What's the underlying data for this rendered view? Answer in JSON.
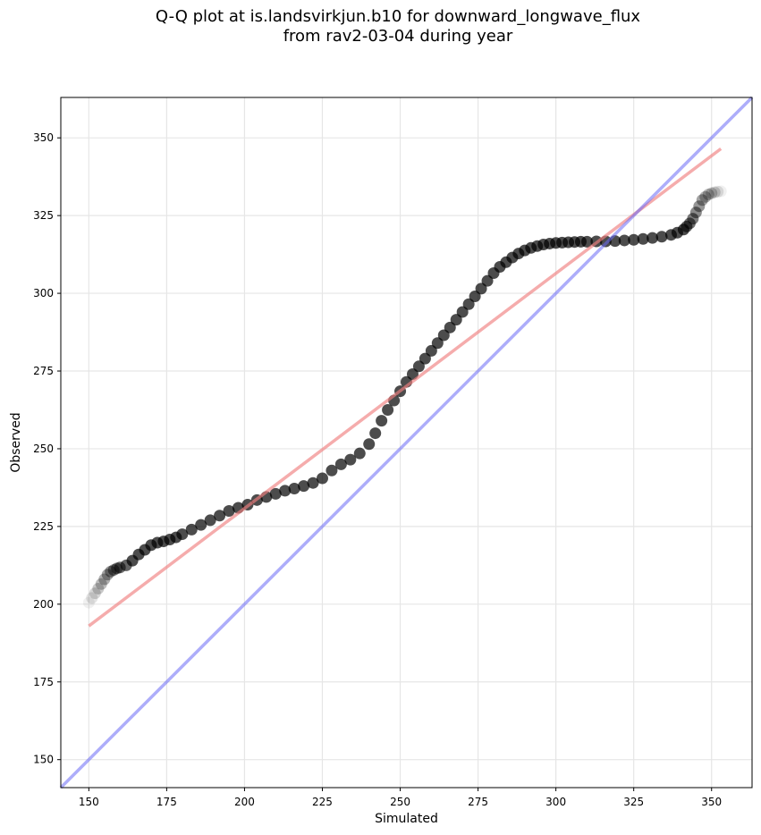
{
  "chart_data": {
    "type": "scatter",
    "title_line1": "Q-Q plot at is.landsvirkjun.b10 for downward_longwave_flux",
    "title_line2": "from rav2-03-04 during year",
    "xlabel": "Simulated",
    "ylabel": "Observed",
    "xlim": [
      141,
      363
    ],
    "ylim": [
      141,
      363
    ],
    "xticks": [
      150,
      175,
      200,
      225,
      250,
      275,
      300,
      325,
      350
    ],
    "yticks": [
      150,
      175,
      200,
      225,
      250,
      275,
      300,
      325,
      350
    ],
    "grid": true,
    "colors": {
      "points": "#000000",
      "fit_line": "#f08080",
      "one_to_one": "#6a6af5"
    },
    "fit_line": {
      "x": [
        150,
        353
      ],
      "y": [
        193,
        346.5
      ]
    },
    "one_to_one_line": {
      "x": [
        141,
        363
      ],
      "y": [
        141,
        363
      ]
    },
    "quantiles": {
      "x": [
        150,
        151,
        152,
        153,
        154,
        155,
        156,
        157,
        158,
        159,
        160,
        162,
        164,
        166,
        168,
        170,
        172,
        174,
        176,
        178,
        180,
        183,
        186,
        189,
        192,
        195,
        198,
        201,
        204,
        207,
        210,
        213,
        216,
        219,
        222,
        225,
        228,
        231,
        234,
        237,
        240,
        242,
        244,
        246,
        248,
        250,
        252,
        254,
        256,
        258,
        260,
        262,
        264,
        266,
        268,
        270,
        272,
        274,
        276,
        278,
        280,
        282,
        284,
        286,
        288,
        290,
        292,
        294,
        296,
        298,
        300,
        302,
        304,
        306,
        308,
        310,
        313,
        316,
        319,
        322,
        325,
        328,
        331,
        334,
        337,
        339,
        341,
        342,
        343,
        344,
        345,
        346,
        347,
        348,
        349,
        350,
        351,
        352,
        353
      ],
      "y": [
        200.5,
        202,
        203.5,
        205,
        206.5,
        208,
        209.5,
        210.5,
        211,
        211.5,
        211.8,
        212.5,
        214,
        216,
        217.5,
        219,
        219.8,
        220.2,
        220.8,
        221.5,
        222.5,
        224,
        225.5,
        227,
        228.5,
        230,
        231,
        232,
        233.5,
        234.5,
        235.5,
        236.5,
        237.2,
        238,
        239,
        240.5,
        243,
        245,
        246.5,
        248.5,
        251.5,
        255,
        259,
        262.5,
        265.5,
        268.5,
        271.5,
        274,
        276.5,
        279,
        281.5,
        284,
        286.5,
        289,
        291.5,
        294,
        296.5,
        299,
        301.5,
        304,
        306.5,
        308.5,
        310,
        311.5,
        312.8,
        313.8,
        314.6,
        315.2,
        315.7,
        316,
        316.2,
        316.3,
        316.4,
        316.5,
        316.6,
        316.6,
        316.7,
        316.7,
        316.8,
        317,
        317.2,
        317.5,
        317.8,
        318.2,
        318.8,
        319.5,
        320.5,
        321.5,
        322.5,
        324,
        326,
        328,
        330,
        331,
        331.8,
        332.2,
        332.5,
        332.7,
        332.8
      ]
    }
  }
}
